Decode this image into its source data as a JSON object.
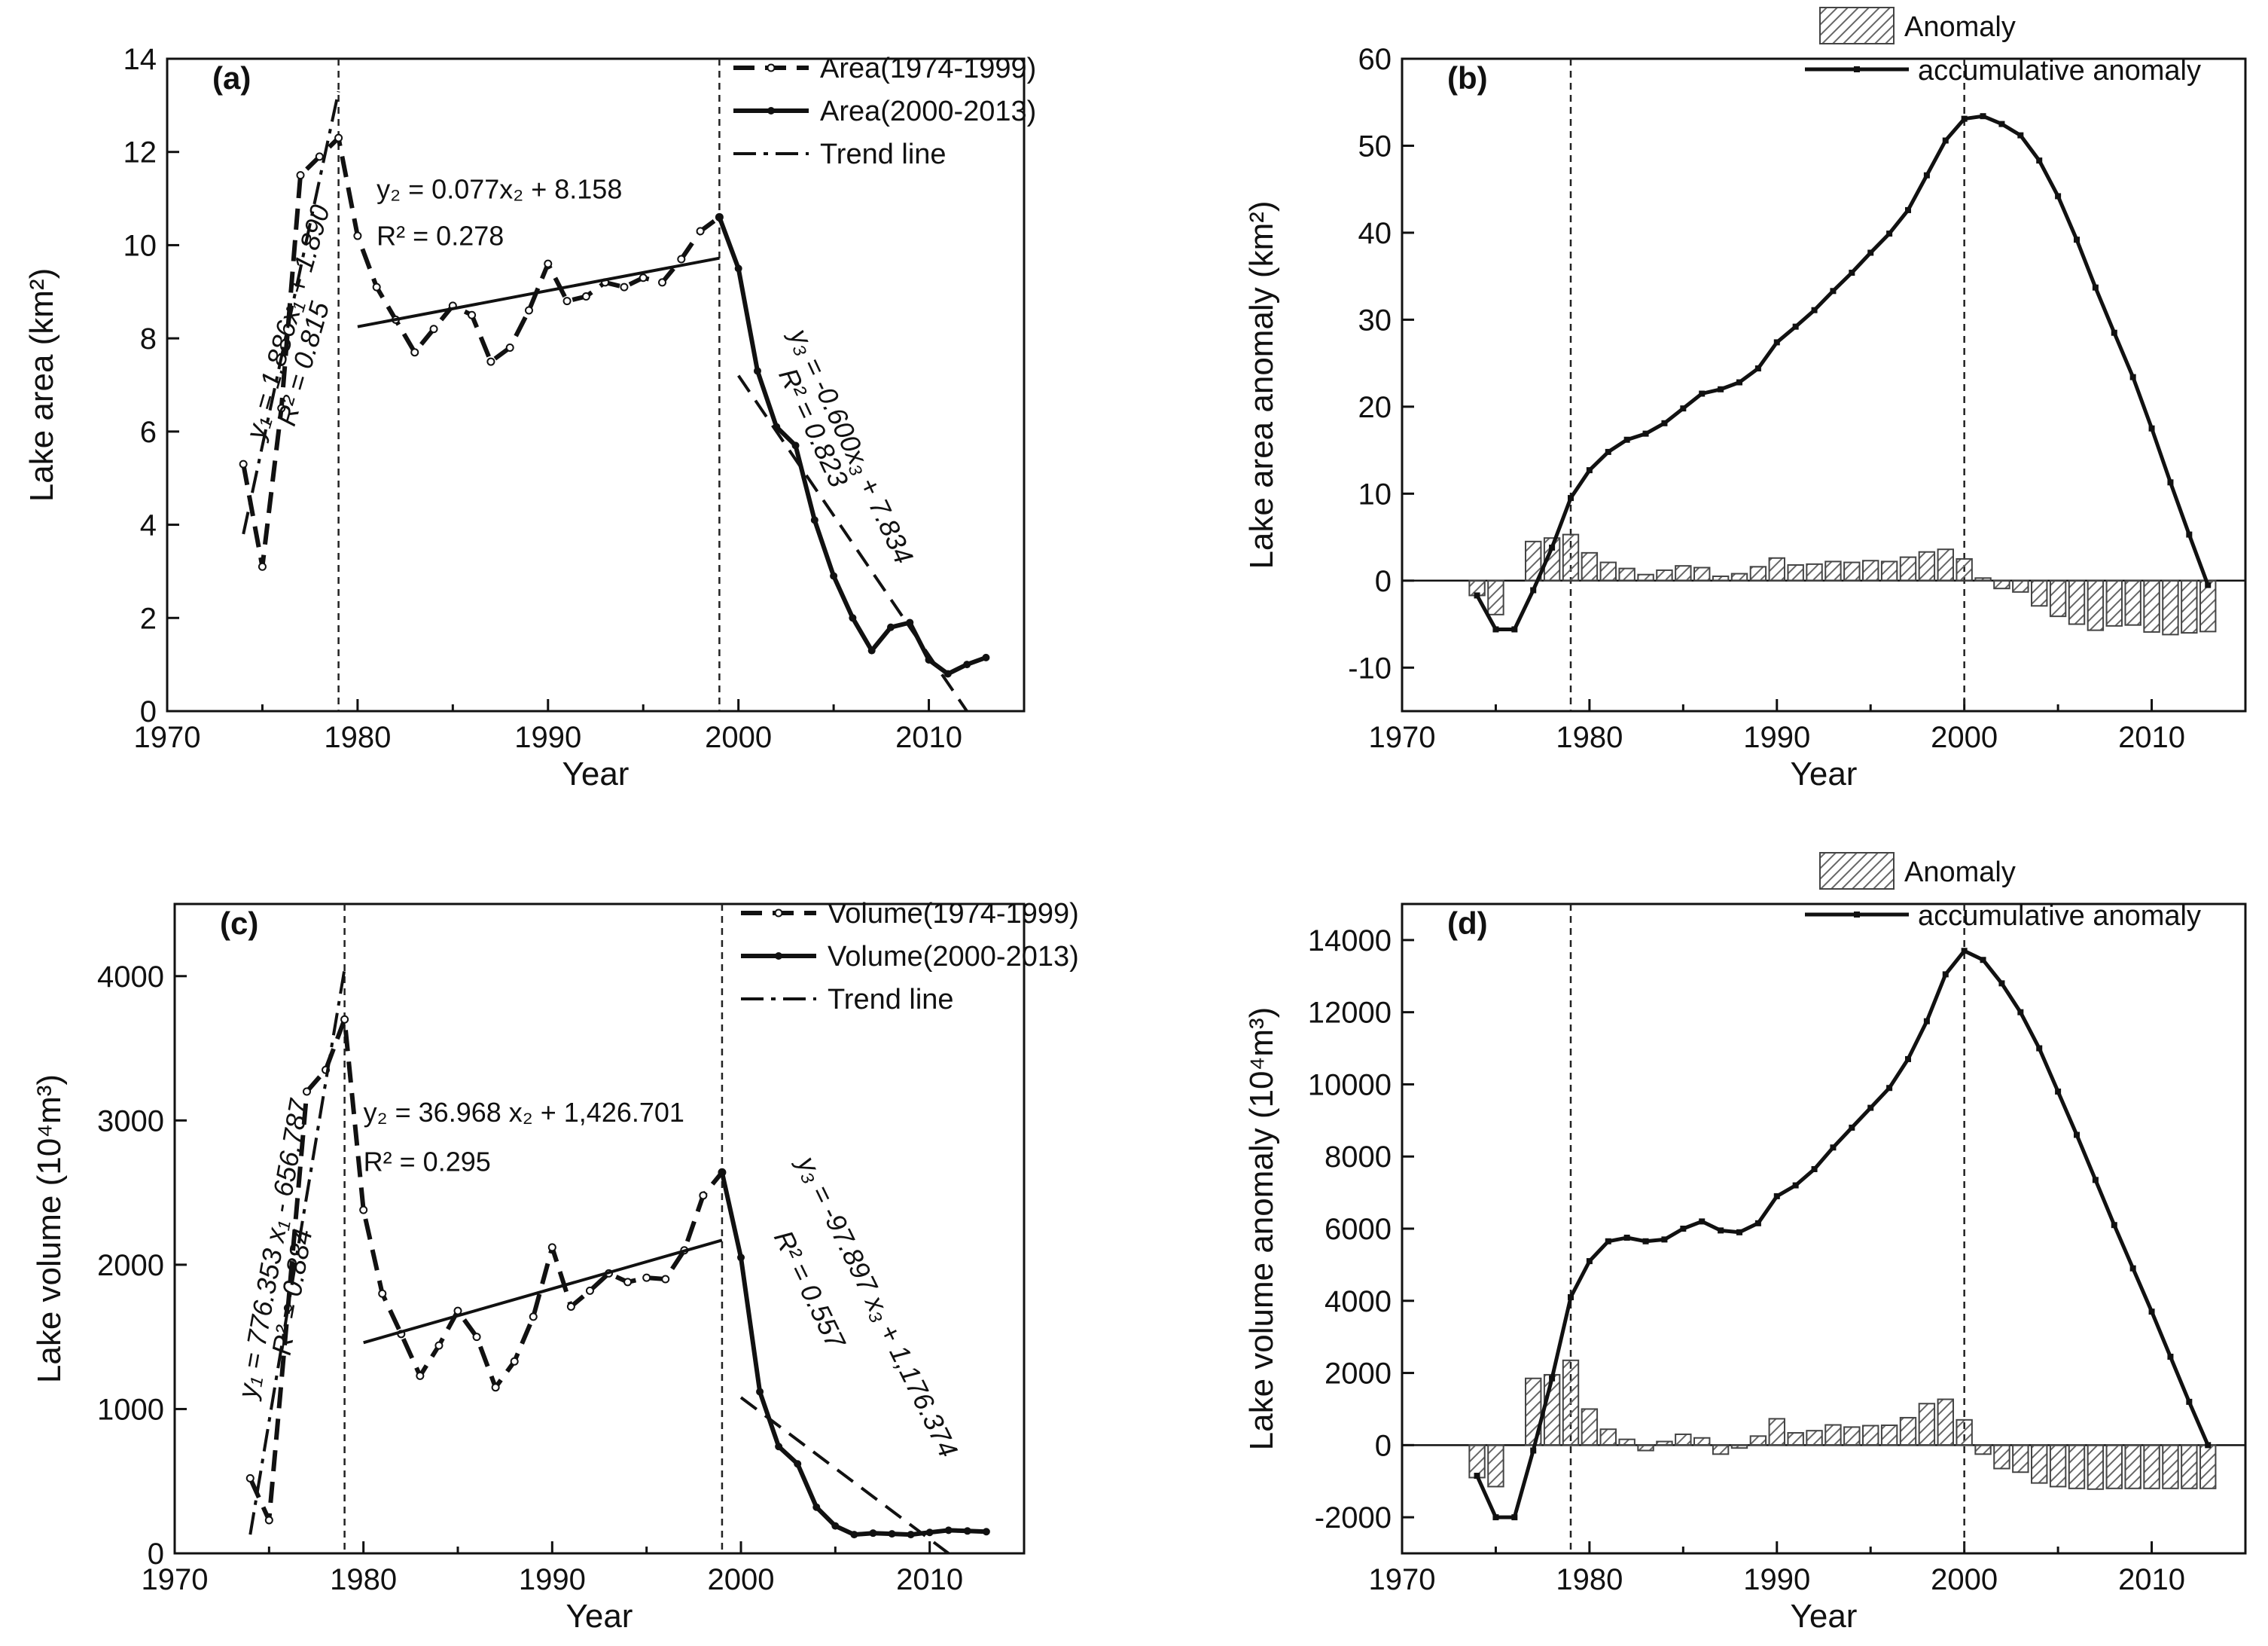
{
  "chart_data": [
    {
      "id": "a",
      "type": "line",
      "panel_label": "(a)",
      "xlabel": "Year",
      "ylabel": "Lake area (km²)",
      "xlim": [
        1970,
        2015
      ],
      "ylim": [
        0,
        14
      ],
      "xticks": [
        1970,
        1980,
        1990,
        2000,
        2010
      ],
      "yticks": [
        0,
        2,
        4,
        6,
        8,
        10,
        12,
        14
      ],
      "vlines": [
        1979,
        1999
      ],
      "legend": {
        "position": "top-right",
        "entries": [
          "Area(1974-1999)",
          "Area(2000-2013)",
          "Trend line"
        ]
      },
      "series": [
        {
          "name": "Area(1974-1999)",
          "style": "dashed-open-markers",
          "x": [
            1974,
            1975,
            1976,
            1977,
            1978,
            1979,
            1980,
            1981,
            1982,
            1983,
            1984,
            1985,
            1986,
            1987,
            1988,
            1989,
            1990,
            1991,
            1992,
            1993,
            1994,
            1995,
            1996,
            1997,
            1998,
            1999
          ],
          "y": [
            5.3,
            3.1,
            6.5,
            11.5,
            11.9,
            12.3,
            10.2,
            9.1,
            8.4,
            7.7,
            8.2,
            8.7,
            8.5,
            7.5,
            7.8,
            8.6,
            9.6,
            8.8,
            8.9,
            9.2,
            9.1,
            9.3,
            9.2,
            9.7,
            10.3,
            10.6
          ]
        },
        {
          "name": "Area(2000-2013)",
          "style": "solid-filled-markers",
          "x": [
            1999,
            2000,
            2001,
            2002,
            2003,
            2004,
            2005,
            2006,
            2007,
            2008,
            2009,
            2010,
            2011,
            2012,
            2013
          ],
          "y": [
            10.6,
            9.5,
            7.3,
            6.1,
            5.7,
            4.1,
            2.9,
            2.0,
            1.3,
            1.8,
            1.9,
            1.1,
            0.8,
            1.0,
            1.15
          ]
        },
        {
          "name": "Trend line 1",
          "style": "dashdot",
          "x": [
            1974,
            1979
          ],
          "y": [
            3.8,
            13.3
          ]
        },
        {
          "name": "Trend line 2",
          "style": "solid",
          "x": [
            1980,
            1999
          ],
          "y": [
            8.25,
            9.72
          ]
        },
        {
          "name": "Trend line 3",
          "style": "dashed",
          "x": [
            2000,
            2012
          ],
          "y": [
            7.2,
            0
          ]
        }
      ],
      "equations": [
        {
          "text": "y₁ = 1.886x₁ + 1.890",
          "at": [
            1976.8,
            8.3
          ],
          "rotate": -74
        },
        {
          "text": "R² = 0.815",
          "at": [
            1977.6,
            7.4
          ],
          "rotate": -74
        },
        {
          "text": "y₂ = 0.077x₂ + 8.158",
          "at": [
            1981.0,
            11.0
          ],
          "rotate": 0
        },
        {
          "text": "R² = 0.278",
          "at": [
            1981.0,
            10.0
          ],
          "rotate": 0
        },
        {
          "text": "y₃ = -0.600x₃ + 7.834",
          "at": [
            2005.5,
            5.6
          ],
          "rotate": 65
        },
        {
          "text": "R² = 0.823",
          "at": [
            2003.5,
            6.0
          ],
          "rotate": 65
        }
      ]
    },
    {
      "id": "b",
      "type": "bar+line",
      "panel_label": "(b)",
      "xlabel": "Year",
      "ylabel": "Lake area anomaly (km²)",
      "xlim": [
        1970,
        2015
      ],
      "ylim": [
        -15,
        60
      ],
      "xticks": [
        1970,
        1980,
        1990,
        2000,
        2010
      ],
      "yticks": [
        -10,
        0,
        10,
        20,
        30,
        40,
        50,
        60
      ],
      "vlines": [
        1979,
        2000
      ],
      "legend": {
        "position": "top-right",
        "entries": [
          "Anomaly",
          "accumulative anomaly"
        ]
      },
      "years": [
        1974,
        1975,
        1976,
        1977,
        1978,
        1979,
        1980,
        1981,
        1982,
        1983,
        1984,
        1985,
        1986,
        1987,
        1988,
        1989,
        1990,
        1991,
        1992,
        1993,
        1994,
        1995,
        1996,
        1997,
        1998,
        1999,
        2000,
        2001,
        2002,
        2003,
        2004,
        2005,
        2006,
        2007,
        2008,
        2009,
        2010,
        2011,
        2012,
        2013
      ],
      "anomaly": [
        -1.7,
        -3.9,
        0,
        4.5,
        4.9,
        5.3,
        3.2,
        2.1,
        1.4,
        0.7,
        1.2,
        1.7,
        1.5,
        0.5,
        0.8,
        1.6,
        2.6,
        1.8,
        1.9,
        2.2,
        2.1,
        2.3,
        2.2,
        2.7,
        3.3,
        3.6,
        2.5,
        0.3,
        -0.9,
        -1.3,
        -2.9,
        -4.1,
        -5.0,
        -5.7,
        -5.2,
        -5.1,
        -5.9,
        -6.2,
        -6.0,
        -5.85
      ],
      "accumulative_anomaly": [
        -1.7,
        -5.6,
        -5.6,
        -1.1,
        3.8,
        9.5,
        12.7,
        14.8,
        16.2,
        16.9,
        18.1,
        19.8,
        21.5,
        22.0,
        22.8,
        24.4,
        27.4,
        29.2,
        31.1,
        33.3,
        35.4,
        37.7,
        39.9,
        42.6,
        46.6,
        50.6,
        53.1,
        53.4,
        52.5,
        51.2,
        48.3,
        44.2,
        39.2,
        33.7,
        28.5,
        23.4,
        17.5,
        11.3,
        5.3,
        -0.5
      ]
    },
    {
      "id": "c",
      "type": "line",
      "panel_label": "(c)",
      "xlabel": "Year",
      "ylabel": "Lake volume (10⁴m³)",
      "xlim": [
        1970,
        2015
      ],
      "ylim": [
        0,
        4500
      ],
      "xticks": [
        1970,
        1980,
        1990,
        2000,
        2010
      ],
      "yticks": [
        0,
        1000,
        2000,
        3000,
        4000
      ],
      "vlines": [
        1979,
        1999
      ],
      "legend": {
        "position": "top-right",
        "entries": [
          "Volume(1974-1999)",
          "Volume(2000-2013)",
          "Trend line"
        ]
      },
      "series": [
        {
          "name": "Volume(1974-1999)",
          "style": "dashed-open-markers",
          "x": [
            1974,
            1975,
            1976,
            1977,
            1978,
            1979,
            1980,
            1981,
            1982,
            1983,
            1984,
            1985,
            1986,
            1987,
            1988,
            1989,
            1990,
            1991,
            1992,
            1993,
            1994,
            1995,
            1996,
            1997,
            1998,
            1999
          ],
          "y": [
            520,
            230,
            1700,
            3200,
            3350,
            3700,
            2380,
            1800,
            1520,
            1230,
            1440,
            1680,
            1500,
            1150,
            1330,
            1640,
            2120,
            1710,
            1820,
            1940,
            1880,
            1910,
            1900,
            2100,
            2480,
            2640
          ]
        },
        {
          "name": "Volume(2000-2013)",
          "style": "solid-filled-markers",
          "x": [
            1999,
            2000,
            2001,
            2002,
            2003,
            2004,
            2005,
            2006,
            2007,
            2008,
            2009,
            2010,
            2011,
            2012,
            2013
          ],
          "y": [
            2640,
            2050,
            1120,
            740,
            620,
            320,
            190,
            130,
            140,
            135,
            130,
            145,
            160,
            155,
            150
          ]
        },
        {
          "name": "Trend line 1",
          "style": "dashdot",
          "x": [
            1974,
            1979
          ],
          "y": [
            130,
            4050
          ]
        },
        {
          "name": "Trend line 2",
          "style": "solid",
          "x": [
            1980,
            1999
          ],
          "y": [
            1460,
            2170
          ]
        },
        {
          "name": "Trend line 3",
          "style": "dashed",
          "x": [
            2000,
            2011
          ],
          "y": [
            1080,
            0
          ]
        }
      ],
      "equations": [
        {
          "text": "y₁ = 776.353 x₁ - 656.787",
          "at": [
            1975.7,
            2100
          ],
          "rotate": -80
        },
        {
          "text": "R² = 0.884",
          "at": [
            1976.7,
            1800
          ],
          "rotate": -80
        },
        {
          "text": "y₂ = 36.968 x₂ + 1,426.701",
          "at": [
            1980.0,
            2990
          ],
          "rotate": 0
        },
        {
          "text": "R² = 0.295",
          "at": [
            1980.0,
            2650
          ],
          "rotate": 0
        },
        {
          "text": "y₃ = -97.897 x₃ + 1,176.374",
          "at": [
            2006.8,
            1680
          ],
          "rotate": 64
        },
        {
          "text": "R² = 0.557",
          "at": [
            2003.2,
            1800
          ],
          "rotate": 64
        }
      ]
    },
    {
      "id": "d",
      "type": "bar+line",
      "panel_label": "(d)",
      "xlabel": "Year",
      "ylabel": "Lake volume anomaly (10⁴m³)",
      "xlim": [
        1970,
        2015
      ],
      "ylim": [
        -3000,
        15000
      ],
      "xticks": [
        1970,
        1980,
        1990,
        2000,
        2010
      ],
      "yticks": [
        -2000,
        0,
        2000,
        4000,
        6000,
        8000,
        10000,
        12000,
        14000
      ],
      "vlines": [
        1979,
        2000
      ],
      "legend": {
        "position": "top-right",
        "entries": [
          "Anomaly",
          "accumulative anomaly"
        ]
      },
      "years": [
        1974,
        1975,
        1976,
        1977,
        1978,
        1979,
        1980,
        1981,
        1982,
        1983,
        1984,
        1985,
        1986,
        1987,
        1988,
        1989,
        1990,
        1991,
        1992,
        1993,
        1994,
        1995,
        1996,
        1997,
        1998,
        1999,
        2000,
        2001,
        2002,
        2003,
        2004,
        2005,
        2006,
        2007,
        2008,
        2009,
        2010,
        2011,
        2012,
        2013
      ],
      "anomaly": [
        -900,
        -1150,
        0,
        1850,
        1950,
        2350,
        1000,
        440,
        160,
        -150,
        100,
        300,
        200,
        -250,
        -80,
        250,
        730,
        340,
        400,
        560,
        500,
        540,
        550,
        760,
        1150,
        1270,
        700,
        -250,
        -650,
        -750,
        -1050,
        -1150,
        -1200,
        -1220,
        -1200,
        -1200,
        -1200,
        -1200,
        -1200,
        -1200
      ],
      "accumulative_anomaly": [
        -850,
        -2000,
        -2000,
        -150,
        1850,
        4100,
        5100,
        5650,
        5750,
        5650,
        5700,
        6000,
        6200,
        5950,
        5900,
        6150,
        6900,
        7200,
        7650,
        8250,
        8800,
        9350,
        9900,
        10700,
        11750,
        13050,
        13700,
        13450,
        12800,
        12000,
        11000,
        9800,
        8600,
        7350,
        6100,
        4900,
        3700,
        2450,
        1200,
        0
      ]
    }
  ]
}
